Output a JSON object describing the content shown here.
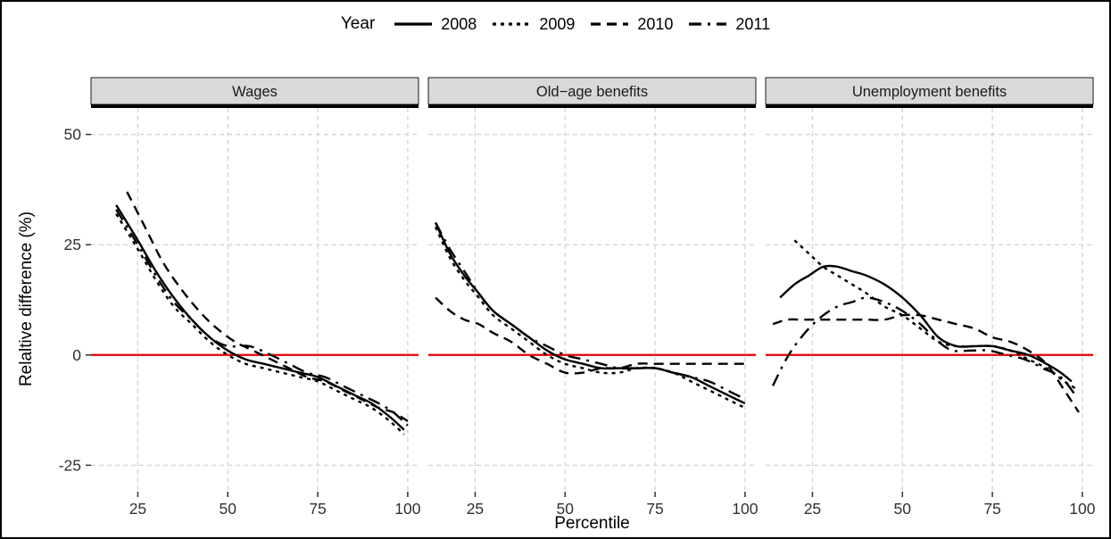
{
  "legend": {
    "title": "Year",
    "items": [
      {
        "label": "2008",
        "linetype": "solid"
      },
      {
        "label": "2009",
        "linetype": "dotted"
      },
      {
        "label": "2010",
        "linetype": "dashed"
      },
      {
        "label": "2011",
        "linetype": "dashdot"
      }
    ]
  },
  "chart_data": {
    "type": "line",
    "title": "",
    "xlabel": "Percentile",
    "ylabel": "Relaltive difference (%)",
    "legend_position": "top",
    "grid": "dashed",
    "xlim": [
      12,
      103
    ],
    "ylim": [
      -31,
      56
    ],
    "x_ticks": [
      25,
      50,
      75,
      100
    ],
    "y_ticks": [
      -25,
      0,
      25,
      50
    ],
    "line_color": "#000000",
    "reference_line": {
      "y": 0,
      "color": "#e80000"
    },
    "panels": [
      {
        "facet": "Wages",
        "series": [
          {
            "name": "2008",
            "linetype": "solid",
            "points": [
              [
                19,
                34
              ],
              [
                25,
                26
              ],
              [
                30,
                19
              ],
              [
                35,
                13
              ],
              [
                40,
                8
              ],
              [
                45,
                4
              ],
              [
                50,
                1
              ],
              [
                55,
                -1
              ],
              [
                60,
                -2
              ],
              [
                65,
                -3
              ],
              [
                70,
                -4
              ],
              [
                75,
                -5
              ],
              [
                80,
                -7
              ],
              [
                85,
                -9
              ],
              [
                90,
                -11
              ],
              [
                95,
                -14
              ],
              [
                99,
                -17
              ]
            ]
          },
          {
            "name": "2009",
            "linetype": "dotted",
            "points": [
              [
                19,
                32
              ],
              [
                25,
                24
              ],
              [
                30,
                17
              ],
              [
                35,
                11
              ],
              [
                40,
                7
              ],
              [
                45,
                3
              ],
              [
                50,
                0
              ],
              [
                55,
                -2
              ],
              [
                60,
                -3
              ],
              [
                65,
                -4
              ],
              [
                70,
                -5
              ],
              [
                75,
                -6
              ],
              [
                80,
                -8
              ],
              [
                85,
                -10
              ],
              [
                90,
                -12
              ],
              [
                95,
                -15
              ],
              [
                99,
                -18
              ]
            ]
          },
          {
            "name": "2010",
            "linetype": "dashed",
            "points": [
              [
                22,
                37
              ],
              [
                27,
                29
              ],
              [
                32,
                21
              ],
              [
                37,
                15
              ],
              [
                42,
                10
              ],
              [
                47,
                6
              ],
              [
                52,
                3
              ],
              [
                57,
                1
              ],
              [
                62,
                -1
              ],
              [
                67,
                -3
              ],
              [
                72,
                -5
              ],
              [
                77,
                -6
              ],
              [
                82,
                -8
              ],
              [
                87,
                -10
              ],
              [
                92,
                -12
              ],
              [
                96,
                -13
              ],
              [
                100,
                -15
              ]
            ]
          },
          {
            "name": "2011",
            "linetype": "dashdot",
            "points": [
              [
                19,
                33
              ],
              [
                25,
                25
              ],
              [
                30,
                18
              ],
              [
                35,
                12
              ],
              [
                40,
                8
              ],
              [
                45,
                4
              ],
              [
                50,
                2
              ],
              [
                56,
                2
              ],
              [
                62,
                0
              ],
              [
                67,
                -2
              ],
              [
                72,
                -4
              ],
              [
                77,
                -5
              ],
              [
                82,
                -7
              ],
              [
                87,
                -9
              ],
              [
                92,
                -11
              ],
              [
                96,
                -13
              ],
              [
                100,
                -16
              ]
            ]
          }
        ]
      },
      {
        "facet": "Old−age benefits",
        "series": [
          {
            "name": "2008",
            "linetype": "solid",
            "points": [
              [
                14,
                30
              ],
              [
                18,
                23
              ],
              [
                22,
                18
              ],
              [
                26,
                14
              ],
              [
                30,
                10
              ],
              [
                35,
                7
              ],
              [
                40,
                4
              ],
              [
                45,
                1
              ],
              [
                50,
                -1
              ],
              [
                55,
                -2
              ],
              [
                60,
                -3
              ],
              [
                65,
                -3
              ],
              [
                70,
                -3
              ],
              [
                75,
                -3
              ],
              [
                80,
                -4
              ],
              [
                85,
                -5
              ],
              [
                90,
                -7
              ],
              [
                95,
                -9
              ],
              [
                100,
                -11
              ]
            ]
          },
          {
            "name": "2009",
            "linetype": "dotted",
            "points": [
              [
                14,
                29
              ],
              [
                18,
                22
              ],
              [
                22,
                17
              ],
              [
                26,
                13
              ],
              [
                30,
                9
              ],
              [
                35,
                6
              ],
              [
                40,
                3
              ],
              [
                45,
                0
              ],
              [
                50,
                -2
              ],
              [
                55,
                -3
              ],
              [
                60,
                -4
              ],
              [
                65,
                -4
              ],
              [
                70,
                -3
              ],
              [
                75,
                -3
              ],
              [
                80,
                -4
              ],
              [
                85,
                -6
              ],
              [
                90,
                -8
              ],
              [
                95,
                -10
              ],
              [
                100,
                -12
              ]
            ]
          },
          {
            "name": "2010",
            "linetype": "dashed",
            "points": [
              [
                14,
                13
              ],
              [
                18,
                10
              ],
              [
                22,
                8
              ],
              [
                26,
                7
              ],
              [
                30,
                5
              ],
              [
                35,
                3
              ],
              [
                40,
                0
              ],
              [
                45,
                -2
              ],
              [
                50,
                -4
              ],
              [
                55,
                -4
              ],
              [
                60,
                -3
              ],
              [
                65,
                -3
              ],
              [
                70,
                -2
              ],
              [
                75,
                -2
              ],
              [
                80,
                -2
              ],
              [
                85,
                -2
              ],
              [
                90,
                -2
              ],
              [
                95,
                -2
              ],
              [
                100,
                -2
              ]
            ]
          },
          {
            "name": "2011",
            "linetype": "dashdot",
            "points": [
              [
                14,
                30
              ],
              [
                18,
                24
              ],
              [
                22,
                19
              ],
              [
                26,
                14
              ],
              [
                30,
                10
              ],
              [
                35,
                7
              ],
              [
                40,
                4
              ],
              [
                45,
                2
              ],
              [
                50,
                0
              ],
              [
                55,
                -1
              ],
              [
                60,
                -2
              ],
              [
                65,
                -3
              ],
              [
                70,
                -3
              ],
              [
                75,
                -3
              ],
              [
                80,
                -4
              ],
              [
                85,
                -5
              ],
              [
                90,
                -6
              ],
              [
                95,
                -8
              ],
              [
                100,
                -10
              ]
            ]
          }
        ]
      },
      {
        "facet": "Unemployment benefits",
        "series": [
          {
            "name": "2008",
            "linetype": "solid",
            "points": [
              [
                16,
                13
              ],
              [
                20,
                16
              ],
              [
                24,
                18
              ],
              [
                28,
                20
              ],
              [
                32,
                20
              ],
              [
                36,
                19
              ],
              [
                40,
                18
              ],
              [
                45,
                16
              ],
              [
                50,
                13
              ],
              [
                55,
                9
              ],
              [
                60,
                4
              ],
              [
                65,
                2
              ],
              [
                70,
                2
              ],
              [
                75,
                2
              ],
              [
                80,
                1
              ],
              [
                85,
                0
              ],
              [
                90,
                -2
              ],
              [
                94,
                -4
              ],
              [
                97,
                -6
              ]
            ]
          },
          {
            "name": "2009",
            "linetype": "dotted",
            "points": [
              [
                20,
                26
              ],
              [
                24,
                23
              ],
              [
                28,
                20
              ],
              [
                32,
                18
              ],
              [
                36,
                16
              ],
              [
                40,
                14
              ],
              [
                45,
                11
              ],
              [
                50,
                9
              ],
              [
                55,
                6
              ],
              [
                60,
                3
              ],
              [
                65,
                2
              ],
              [
                70,
                2
              ],
              [
                75,
                2
              ],
              [
                80,
                1
              ],
              [
                85,
                -1
              ],
              [
                90,
                -3
              ],
              [
                95,
                -6
              ],
              [
                99,
                -8
              ]
            ]
          },
          {
            "name": "2010",
            "linetype": "dashed",
            "points": [
              [
                14,
                7
              ],
              [
                18,
                8
              ],
              [
                22,
                8
              ],
              [
                26,
                8
              ],
              [
                30,
                8
              ],
              [
                35,
                8
              ],
              [
                40,
                8
              ],
              [
                45,
                8
              ],
              [
                50,
                9
              ],
              [
                55,
                9
              ],
              [
                60,
                8
              ],
              [
                65,
                7
              ],
              [
                70,
                6
              ],
              [
                75,
                4
              ],
              [
                80,
                3
              ],
              [
                85,
                1
              ],
              [
                90,
                -2
              ],
              [
                95,
                -8
              ],
              [
                99,
                -13
              ]
            ]
          },
          {
            "name": "2011",
            "linetype": "dashdot",
            "points": [
              [
                14,
                -7
              ],
              [
                17,
                -2
              ],
              [
                20,
                2
              ],
              [
                24,
                6
              ],
              [
                28,
                9
              ],
              [
                32,
                11
              ],
              [
                36,
                12
              ],
              [
                40,
                13
              ],
              [
                45,
                12
              ],
              [
                50,
                10
              ],
              [
                55,
                7
              ],
              [
                60,
                3
              ],
              [
                64,
                1
              ],
              [
                69,
                1
              ],
              [
                74,
                1
              ],
              [
                79,
                0
              ],
              [
                84,
                -1
              ],
              [
                89,
                -3
              ],
              [
                94,
                -5
              ],
              [
                98,
                -9
              ]
            ]
          }
        ]
      }
    ]
  }
}
